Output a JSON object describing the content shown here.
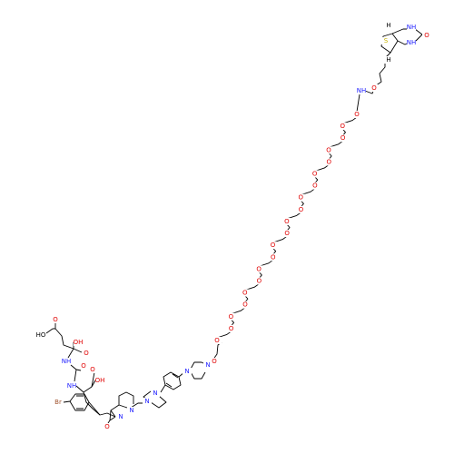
{
  "molecule": {
    "atom_labels": [
      "HO",
      "O",
      "OH",
      "O",
      "NH",
      "O",
      "NH",
      "OH",
      "O",
      "Br",
      "N",
      "O",
      "N",
      "N",
      "N",
      "N",
      "N",
      "O",
      "O",
      "O",
      "O",
      "O",
      "O",
      "O",
      "O",
      "O",
      "O",
      "O",
      "O",
      "O",
      "O",
      "O",
      "O",
      "O",
      "O",
      "O",
      "O",
      "O",
      "NH",
      "O",
      "S",
      "NH",
      "NH",
      "O",
      "H",
      "H"
    ]
  }
}
